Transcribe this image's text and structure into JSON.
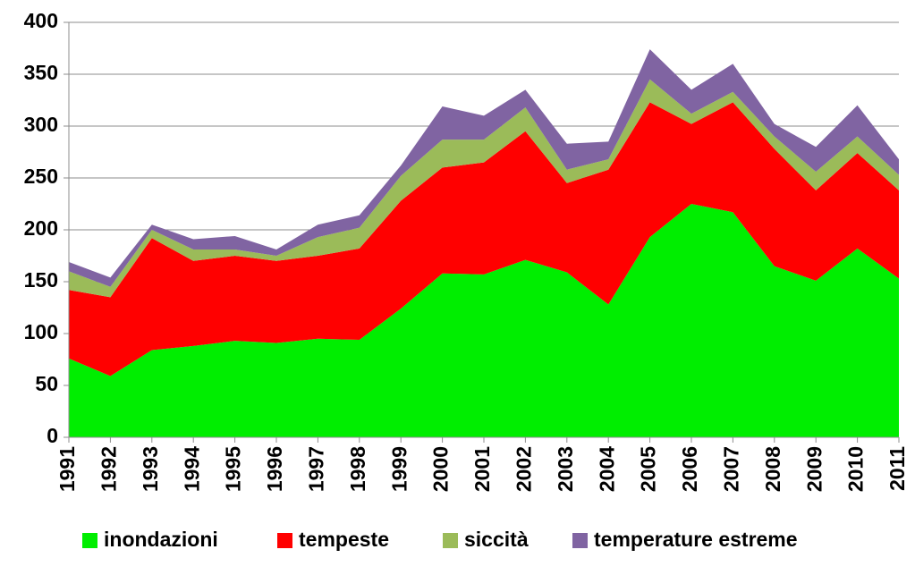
{
  "chart_data": {
    "type": "stacked_area",
    "categories": [
      "1991",
      "1992",
      "1993",
      "1994",
      "1995",
      "1996",
      "1997",
      "1998",
      "1999",
      "2000",
      "2001",
      "2002",
      "2003",
      "2004",
      "2005",
      "2006",
      "2007",
      "2008",
      "2009",
      "2010",
      "2011"
    ],
    "series": [
      {
        "name": "inondazioni",
        "color": "#00ee00",
        "values": [
          76,
          59,
          84,
          88,
          93,
          91,
          95,
          94,
          124,
          158,
          157,
          171,
          159,
          128,
          193,
          225,
          217,
          165,
          151,
          182,
          153
        ]
      },
      {
        "name": "tempeste",
        "color": "#ff0000",
        "values": [
          66,
          76,
          108,
          82,
          82,
          79,
          80,
          88,
          104,
          102,
          108,
          124,
          86,
          130,
          130,
          77,
          106,
          113,
          87,
          92,
          85
        ]
      },
      {
        "name": "siccità",
        "color": "#9bbb59",
        "values": [
          18,
          10,
          8,
          11,
          6,
          5,
          18,
          20,
          24,
          27,
          22,
          23,
          13,
          10,
          22,
          10,
          10,
          12,
          18,
          16,
          15
        ]
      },
      {
        "name": "temperature estreme",
        "color": "#8064a2",
        "values": [
          9,
          9,
          5,
          10,
          13,
          6,
          12,
          12,
          10,
          32,
          23,
          17,
          25,
          17,
          29,
          23,
          27,
          12,
          24,
          30,
          15
        ]
      }
    ],
    "ylim": [
      0,
      400
    ],
    "yticks": [
      0,
      50,
      100,
      150,
      200,
      250,
      300,
      350,
      400
    ],
    "grid": true,
    "legend": "bottom"
  }
}
